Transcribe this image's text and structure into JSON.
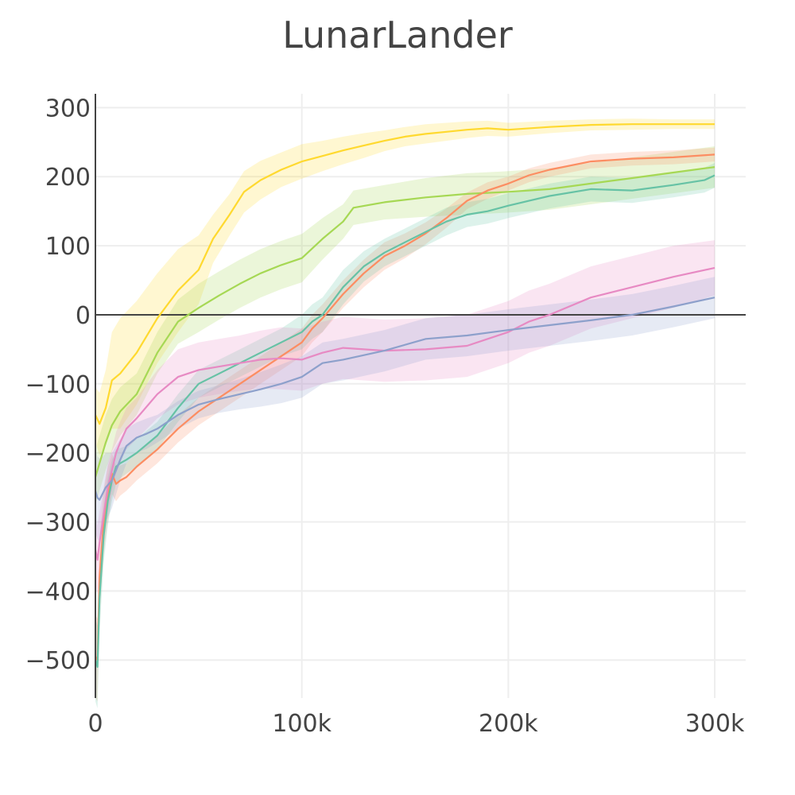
{
  "chart_data": {
    "type": "line",
    "title": "LunarLander",
    "xlabel": "",
    "ylabel": "",
    "xlim": [
      0,
      315000
    ],
    "ylim": [
      -555,
      320
    ],
    "x_ticks": [
      {
        "value": 0,
        "label": "0"
      },
      {
        "value": 100000,
        "label": "100k"
      },
      {
        "value": 200000,
        "label": "200k"
      },
      {
        "value": 300000,
        "label": "300k"
      }
    ],
    "y_ticks": [
      {
        "value": 300,
        "label": "300"
      },
      {
        "value": 200,
        "label": "200"
      },
      {
        "value": 100,
        "label": "100"
      },
      {
        "value": 0,
        "label": "0"
      },
      {
        "value": -100,
        "label": "−100"
      },
      {
        "value": -200,
        "label": "−200"
      },
      {
        "value": -300,
        "label": "−300"
      },
      {
        "value": -400,
        "label": "−400"
      },
      {
        "value": -500,
        "label": "−500"
      }
    ],
    "grid": true,
    "legend": "none",
    "series": [
      {
        "color": "#ffd92f",
        "x": [
          0,
          2000,
          5000,
          8000,
          12000,
          20000,
          30000,
          40000,
          50000,
          57000,
          65000,
          72000,
          80000,
          90000,
          100000,
          110000,
          120000,
          130000,
          140000,
          150000,
          160000,
          170000,
          180000,
          190000,
          200000,
          220000,
          240000,
          260000,
          280000,
          300000
        ],
        "y": [
          -145,
          -158,
          -135,
          -95,
          -85,
          -55,
          -5,
          35,
          65,
          110,
          145,
          178,
          195,
          210,
          222,
          230,
          238,
          245,
          252,
          258,
          262,
          265,
          268,
          270,
          268,
          272,
          275,
          276,
          276,
          276
        ],
        "band": [
          40,
          45,
          55,
          70,
          80,
          75,
          65,
          60,
          50,
          35,
          30,
          30,
          28,
          25,
          25,
          22,
          20,
          18,
          15,
          14,
          14,
          13,
          12,
          11,
          10,
          9,
          8,
          8,
          7,
          7
        ]
      },
      {
        "color": "#a6d854",
        "x": [
          0,
          2000,
          5000,
          8000,
          12000,
          20000,
          30000,
          40000,
          50000,
          60000,
          70000,
          80000,
          90000,
          100000,
          110000,
          120000,
          125000,
          140000,
          160000,
          180000,
          200000,
          220000,
          240000,
          260000,
          280000,
          300000
        ],
        "y": [
          -235,
          -215,
          -185,
          -160,
          -140,
          -115,
          -55,
          -10,
          10,
          28,
          45,
          60,
          72,
          82,
          110,
          135,
          155,
          163,
          170,
          175,
          178,
          182,
          190,
          198,
          206,
          214
        ],
        "band": [
          40,
          40,
          40,
          38,
          35,
          30,
          30,
          32,
          35,
          35,
          35,
          35,
          35,
          35,
          30,
          25,
          25,
          25,
          28,
          30,
          30,
          30,
          30,
          30,
          30,
          30
        ]
      },
      {
        "color": "#fc8d62",
        "x": [
          0,
          1000,
          2000,
          4000,
          6000,
          8000,
          10000,
          12000,
          15000,
          20000,
          30000,
          40000,
          50000,
          60000,
          70000,
          80000,
          90000,
          100000,
          105000,
          110000,
          120000,
          130000,
          140000,
          150000,
          160000,
          170000,
          180000,
          190000,
          200000,
          210000,
          220000,
          240000,
          260000,
          280000,
          300000
        ],
        "y": [
          -495,
          -500,
          -380,
          -300,
          -260,
          -230,
          -245,
          -240,
          -235,
          -220,
          -195,
          -165,
          -140,
          -120,
          -100,
          -80,
          -60,
          -40,
          -20,
          -5,
          30,
          60,
          85,
          100,
          118,
          140,
          165,
          180,
          190,
          202,
          210,
          222,
          226,
          228,
          232
        ],
        "band": [
          60,
          60,
          55,
          45,
          40,
          30,
          25,
          22,
          20,
          20,
          20,
          20,
          20,
          20,
          20,
          20,
          20,
          20,
          20,
          20,
          20,
          20,
          20,
          18,
          16,
          14,
          12,
          12,
          10,
          10,
          10,
          10,
          10,
          10,
          10
        ]
      },
      {
        "color": "#66c2a5",
        "x": [
          0,
          1000,
          2000,
          4000,
          6000,
          8000,
          10000,
          12000,
          15000,
          20000,
          30000,
          40000,
          50000,
          60000,
          70000,
          80000,
          90000,
          100000,
          105000,
          110000,
          120000,
          130000,
          140000,
          150000,
          160000,
          170000,
          180000,
          190000,
          200000,
          210000,
          220000,
          240000,
          260000,
          280000,
          295000,
          300000
        ],
        "y": [
          -500,
          -510,
          -410,
          -320,
          -270,
          -240,
          -220,
          -215,
          -210,
          -200,
          -175,
          -135,
          -100,
          -85,
          -70,
          -55,
          -40,
          -25,
          -10,
          0,
          40,
          70,
          90,
          105,
          120,
          135,
          145,
          150,
          158,
          165,
          172,
          182,
          180,
          188,
          195,
          202
        ],
        "band": [
          60,
          60,
          50,
          40,
          35,
          30,
          25,
          22,
          20,
          20,
          20,
          20,
          20,
          20,
          20,
          20,
          20,
          25,
          25,
          25,
          25,
          22,
          20,
          20,
          20,
          20,
          18,
          18,
          18,
          18,
          18,
          18,
          18,
          18,
          18,
          18
        ]
      },
      {
        "color": "#e78ac3",
        "x": [
          0,
          1000,
          2000,
          4000,
          6000,
          8000,
          10000,
          12000,
          15000,
          20000,
          30000,
          40000,
          50000,
          60000,
          70000,
          80000,
          90000,
          100000,
          110000,
          120000,
          140000,
          160000,
          180000,
          190000,
          200000,
          210000,
          220000,
          240000,
          260000,
          280000,
          300000
        ],
        "y": [
          -340,
          -355,
          -330,
          -290,
          -250,
          -225,
          -200,
          -185,
          -165,
          -150,
          -115,
          -90,
          -80,
          -75,
          -70,
          -65,
          -63,
          -65,
          -55,
          -48,
          -52,
          -50,
          -45,
          -35,
          -25,
          -10,
          0,
          25,
          40,
          55,
          68
        ],
        "band": [
          50,
          50,
          45,
          40,
          35,
          30,
          30,
          30,
          30,
          30,
          35,
          40,
          40,
          40,
          40,
          42,
          45,
          45,
          45,
          45,
          45,
          45,
          45,
          45,
          45,
          45,
          45,
          45,
          45,
          45,
          40
        ]
      },
      {
        "color": "#8da0cb",
        "x": [
          0,
          1000,
          2000,
          3000,
          5000,
          8000,
          10000,
          12000,
          15000,
          20000,
          25000,
          30000,
          40000,
          50000,
          60000,
          70000,
          80000,
          90000,
          100000,
          110000,
          120000,
          140000,
          160000,
          180000,
          200000,
          220000,
          240000,
          260000,
          280000,
          300000
        ],
        "y": [
          -255,
          -265,
          -268,
          -262,
          -250,
          -240,
          -225,
          -210,
          -190,
          -178,
          -172,
          -165,
          -145,
          -130,
          -122,
          -115,
          -108,
          -100,
          -90,
          -70,
          -65,
          -52,
          -35,
          -30,
          -22,
          -15,
          -8,
          0,
          12,
          25
        ],
        "band": [
          60,
          60,
          60,
          55,
          50,
          40,
          35,
          30,
          25,
          22,
          22,
          20,
          20,
          20,
          20,
          22,
          25,
          28,
          30,
          30,
          30,
          30,
          30,
          30,
          30,
          30,
          30,
          30,
          30,
          30
        ]
      }
    ]
  }
}
